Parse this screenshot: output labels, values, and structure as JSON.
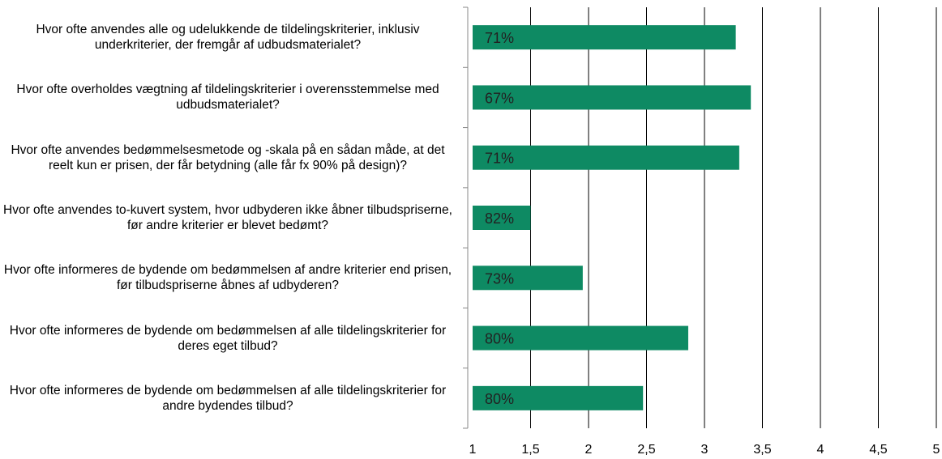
{
  "chart_data": {
    "type": "bar",
    "orientation": "horizontal",
    "categories": [
      "Hvor ofte anvendes alle og udelukkende de tildelingskriterier, inklusiv underkriterier, der fremgår af udbudsmaterialet?",
      "Hvor ofte overholdes vægtning af tildelingskriterier i overensstemmelse med udbudsmaterialet?",
      "Hvor ofte anvendes bedømmelsesmetode og -skala på en sådan måde, at det reelt kun er prisen, der får betydning (alle får fx 90% på design)?",
      "Hvor ofte anvendes to-kuvert system, hvor udbyderen ikke åbner tilbudspriserne, før andre kriterier er blevet bedømt?",
      "Hvor ofte informeres de bydende om bedømmelsen af andre kriterier end prisen, før tilbudspriserne åbnes af udbyderen?",
      "Hvor ofte informeres de bydende om bedømmelsen af alle tildelingskriterier for deres eget tilbud?",
      "Hvor ofte informeres de bydende om bedømmelsen af alle tildelingskriterier for andre bydendes tilbud?"
    ],
    "values": [
      3.27,
      3.4,
      3.3,
      1.5,
      1.95,
      2.86,
      2.47
    ],
    "bar_annotations": [
      "71%",
      "67%",
      "71%",
      "82%",
      "73%",
      "80%",
      "80%"
    ],
    "color": "#0e8a63",
    "xlim": [
      1,
      5
    ],
    "xticks": [
      1,
      {
        "value": 1.5,
        "label": "1,5"
      },
      2,
      {
        "value": 2.5,
        "label": "2,5"
      },
      3,
      {
        "value": 3.5,
        "label": "3,5"
      },
      4,
      {
        "value": 4.5,
        "label": "4,5"
      },
      5
    ],
    "grid": true
  }
}
